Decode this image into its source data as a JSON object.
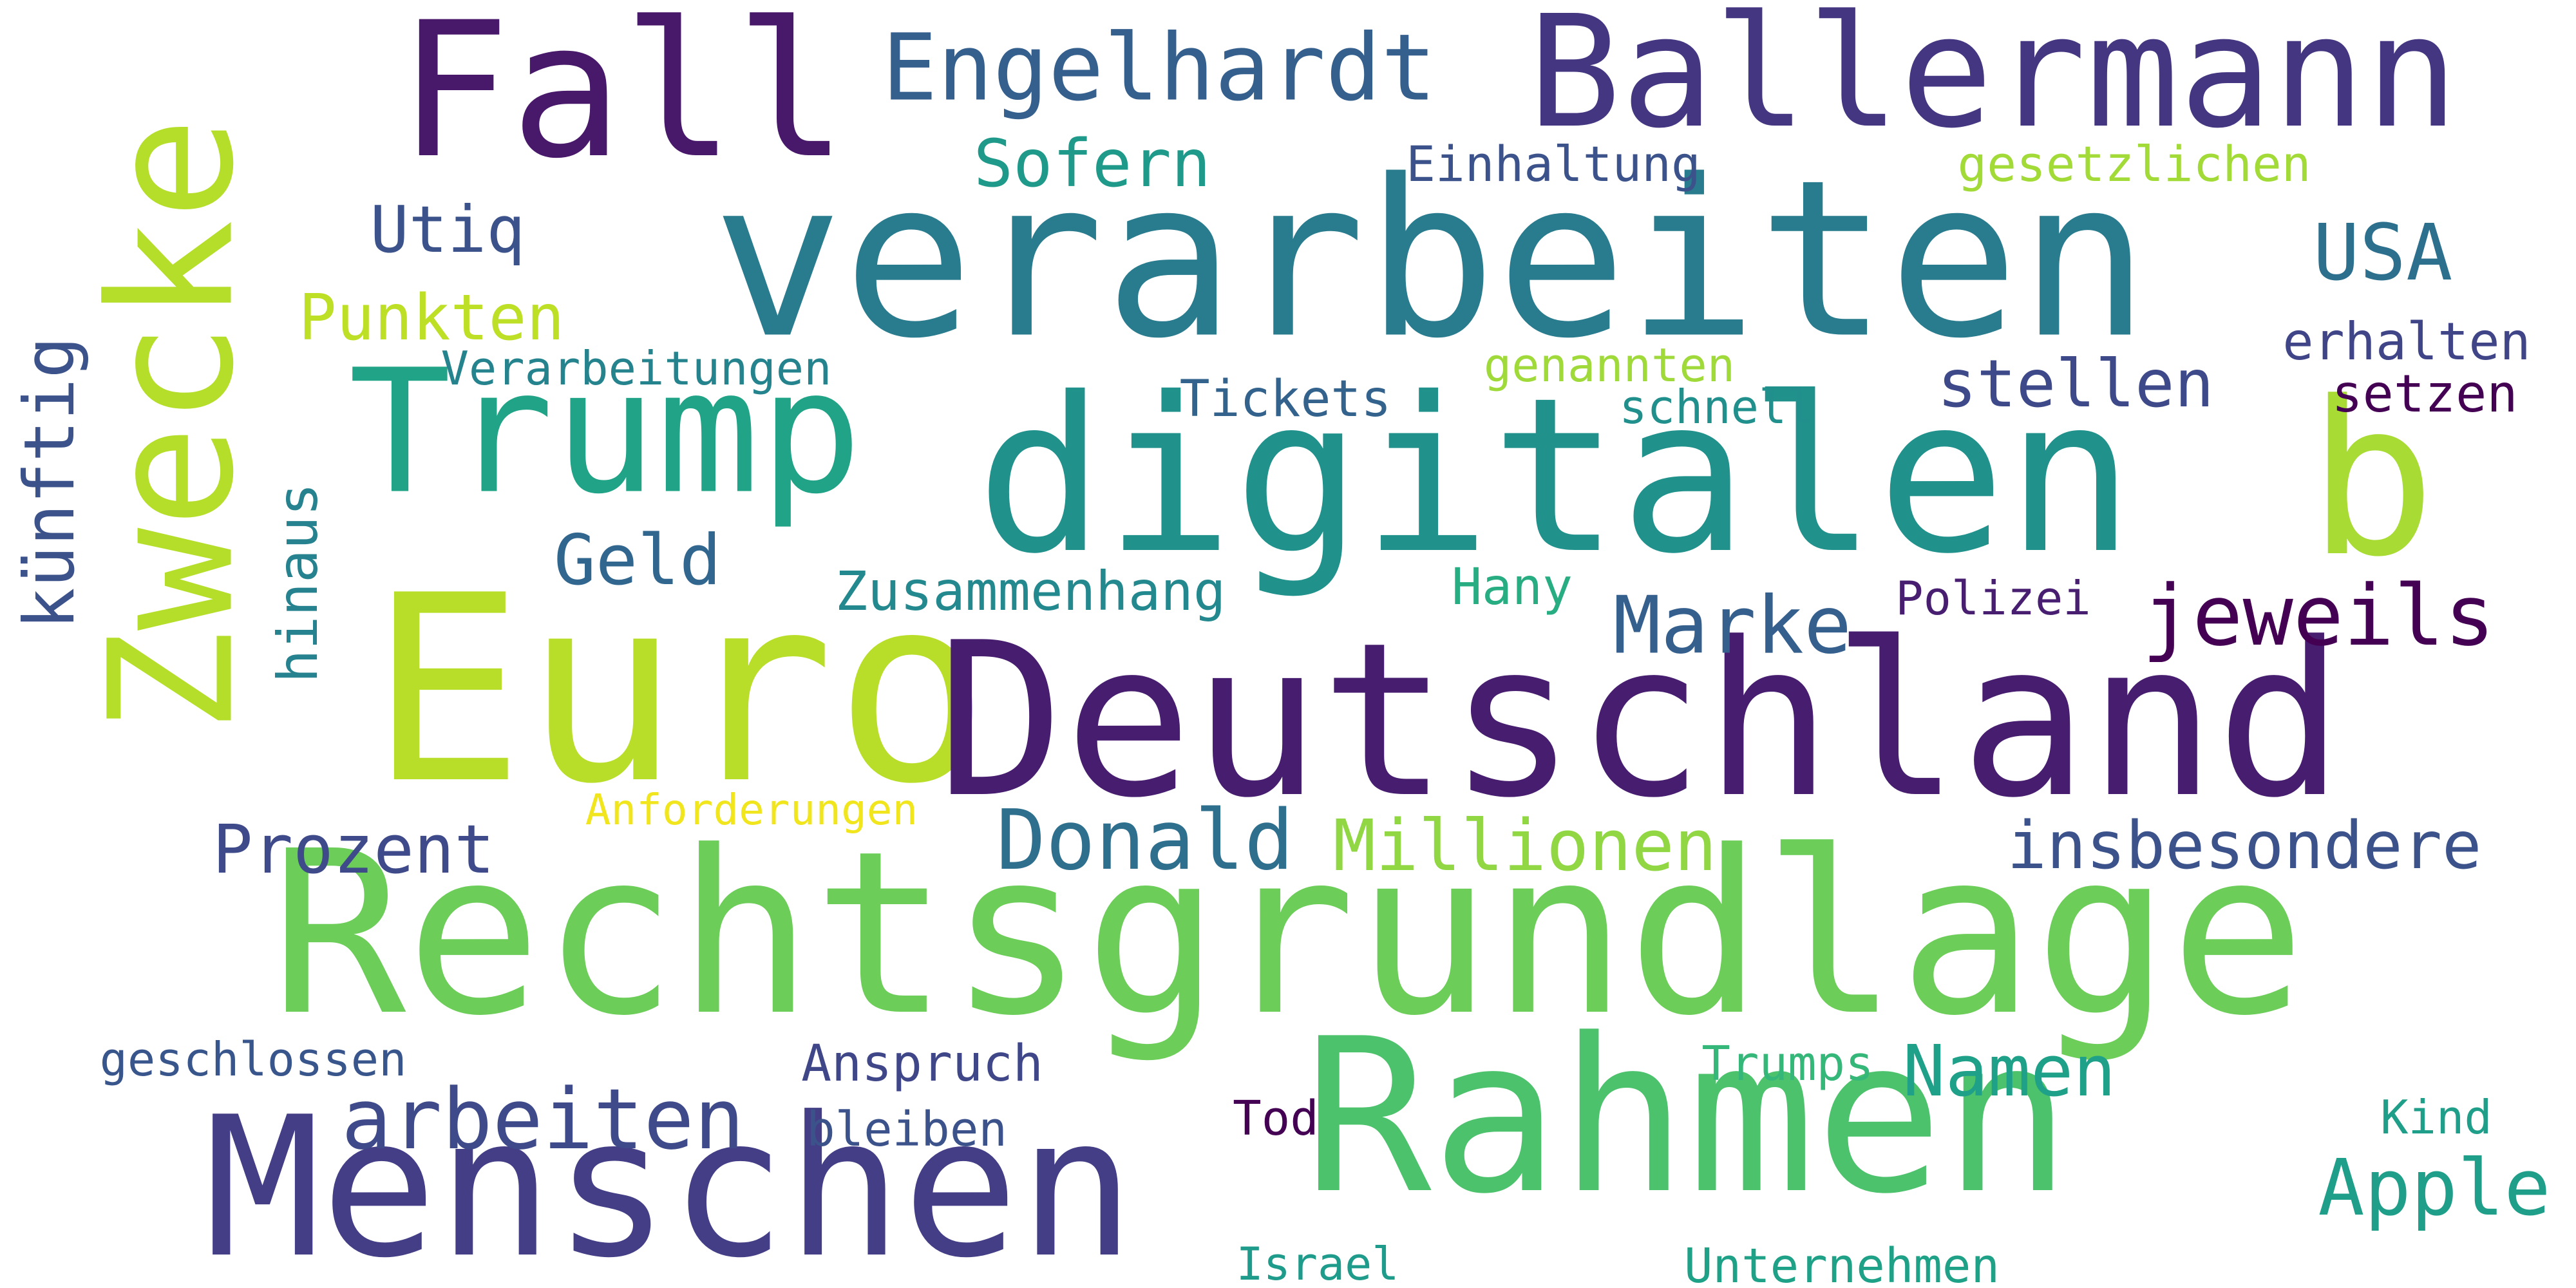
{
  "words": [
    {
      "text": "Rechtsgrundlage",
      "color": "#6ccd59"
    },
    {
      "text": "Euro",
      "color": "#b8de29"
    },
    {
      "text": "Deutschland",
      "color": "#471d6f"
    },
    {
      "text": "verarbeiten",
      "color": "#297b8e"
    },
    {
      "text": "digitalen",
      "color": "#21918c"
    },
    {
      "text": "Rahmen",
      "color": "#4cc26c"
    },
    {
      "text": "Menschen",
      "color": "#433e85"
    },
    {
      "text": "Zwecke",
      "color": "#b5de2b"
    },
    {
      "text": "Trump",
      "color": "#20a386"
    },
    {
      "text": "Ballermann",
      "color": "#453681"
    },
    {
      "text": "Fall",
      "color": "#48186a"
    },
    {
      "text": "b",
      "color": "#a8db34"
    },
    {
      "text": "Engelhardt",
      "color": "#355f8d"
    },
    {
      "text": "Donald",
      "color": "#2e6f8e"
    },
    {
      "text": "arbeiten",
      "color": "#3e4a89"
    },
    {
      "text": "Marke",
      "color": "#355f8d"
    },
    {
      "text": "jeweils",
      "color": "#440154"
    },
    {
      "text": "insbesondere",
      "color": "#3b528b"
    },
    {
      "text": "Millionen",
      "color": "#90d743"
    },
    {
      "text": "Prozent",
      "color": "#3e4a89"
    },
    {
      "text": "Namen",
      "color": "#1fa088"
    },
    {
      "text": "Apple",
      "color": "#1f9e89"
    },
    {
      "text": "stellen",
      "color": "#3e4989"
    },
    {
      "text": "USA",
      "color": "#2d708e"
    },
    {
      "text": "Sofern",
      "color": "#1f9a8a"
    },
    {
      "text": "Punkten",
      "color": "#bddf26"
    },
    {
      "text": "Geld",
      "color": "#31668e"
    },
    {
      "text": "künftig",
      "color": "#3b528b"
    },
    {
      "text": "hinaus",
      "color": "#26828e"
    },
    {
      "text": "Utiq",
      "color": "#3b528b"
    },
    {
      "text": "Zusammenhang",
      "color": "#23898e"
    },
    {
      "text": "Einhaltung",
      "color": "#3b528b"
    },
    {
      "text": "gesetzlichen",
      "color": "#a2da37"
    },
    {
      "text": "Verarbeitungen",
      "color": "#25838e"
    },
    {
      "text": "genannten",
      "color": "#9fda3a"
    },
    {
      "text": "Tickets",
      "color": "#33638d"
    },
    {
      "text": "schnell",
      "color": "#21908d"
    },
    {
      "text": "erhalten",
      "color": "#404588"
    },
    {
      "text": "setzen",
      "color": "#440154"
    },
    {
      "text": "Hany",
      "color": "#27ad81"
    },
    {
      "text": "Polizei",
      "color": "#481f70"
    },
    {
      "text": "Anforderungen",
      "color": "#f1e51d"
    },
    {
      "text": "geschlossen",
      "color": "#39568c"
    },
    {
      "text": "Anspruch",
      "color": "#3f4788"
    },
    {
      "text": "bleiben",
      "color": "#3b528b"
    },
    {
      "text": "Trumps",
      "color": "#35b779"
    },
    {
      "text": "Tod",
      "color": "#440154"
    },
    {
      "text": "Kind",
      "color": "#1f9e89"
    },
    {
      "text": "Israel",
      "color": "#1e9b8a"
    },
    {
      "text": "Unternehmen",
      "color": "#1fa187"
    }
  ]
}
